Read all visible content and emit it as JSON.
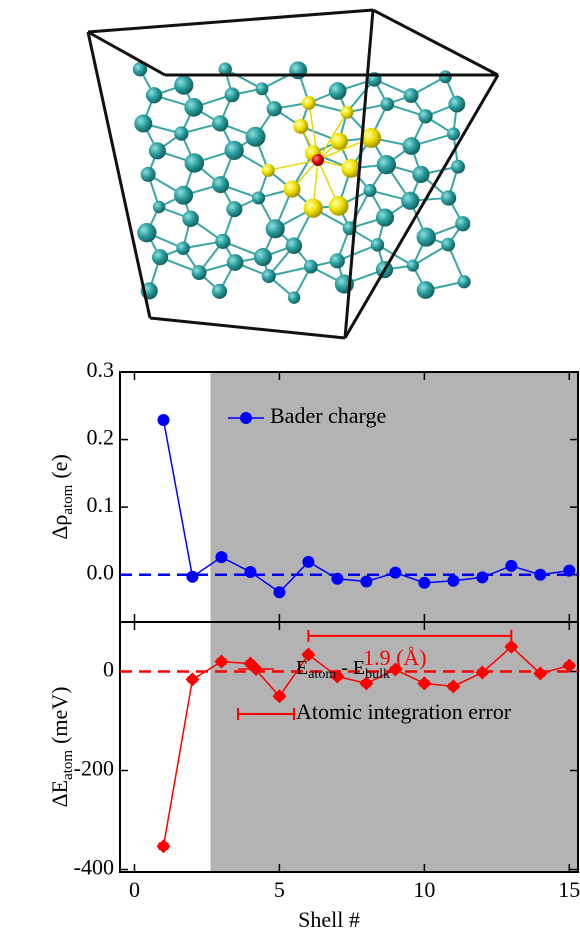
{
  "chart_data": [
    {
      "type": "line",
      "ylabel": {
        "main": "Δρ",
        "sub": "atom",
        "unit": "(e)"
      },
      "x": [
        1,
        2,
        3,
        4,
        5,
        6,
        7,
        8,
        9,
        10,
        11,
        12,
        13,
        14,
        15
      ],
      "xlim": [
        -0.5,
        15.3
      ],
      "xticks": [
        0,
        5,
        10,
        15
      ],
      "ylim": [
        -0.07,
        0.3
      ],
      "yticks": [
        {
          "value": 0,
          "label": "0.0"
        },
        0.1,
        0.2,
        0.3
      ],
      "shaded_from_x": 2.62,
      "shade_color": "#b3b3b3",
      "zero_line": true,
      "series": [
        {
          "name": "Bader charge",
          "color": "#0000ff",
          "marker": "circle",
          "values": [
            0.229,
            -0.003,
            0.026,
            0.004,
            -0.026,
            0.019,
            -0.006,
            -0.01,
            0.003,
            -0.012,
            -0.009,
            -0.004,
            0.013,
            0.0,
            0.006
          ]
        }
      ]
    },
    {
      "type": "line",
      "ylabel": {
        "main": "ΔE",
        "sub": "atom",
        "unit": "(meV)"
      },
      "xlabel": "Shell #",
      "x": [
        1,
        2,
        3,
        4,
        5,
        6,
        7,
        8,
        9,
        10,
        11,
        12,
        13,
        14,
        15
      ],
      "xlim": [
        -0.5,
        15.3
      ],
      "xticks": [
        0,
        5,
        10,
        15
      ],
      "ylim": [
        -405,
        100
      ],
      "yticks": [
        -400,
        -200,
        0
      ],
      "shaded_from_x": 2.62,
      "shade_color": "#b3b3b3",
      "zero_line": true,
      "series": [
        {
          "name": {
            "parts": [
              {
                "text": "E"
              },
              {
                "sub": "atom"
              },
              {
                "text": " - E"
              },
              {
                "sub": "bulk"
              }
            ]
          },
          "color": "#ff0000",
          "marker": "diamond",
          "values": [
            -353,
            -16,
            20,
            16,
            -50,
            34,
            -10,
            -24,
            4,
            -24,
            -30,
            -2,
            50,
            -4,
            12
          ],
          "errors": [
            6,
            5,
            5,
            5,
            5,
            5,
            5,
            5,
            5,
            5,
            5,
            5,
            5,
            5,
            5
          ],
          "error_legend": "Atomic integration error"
        }
      ],
      "annotation": {
        "text": "1.9 (Å)",
        "x": [
          6,
          13
        ],
        "y": 72
      }
    }
  ]
}
